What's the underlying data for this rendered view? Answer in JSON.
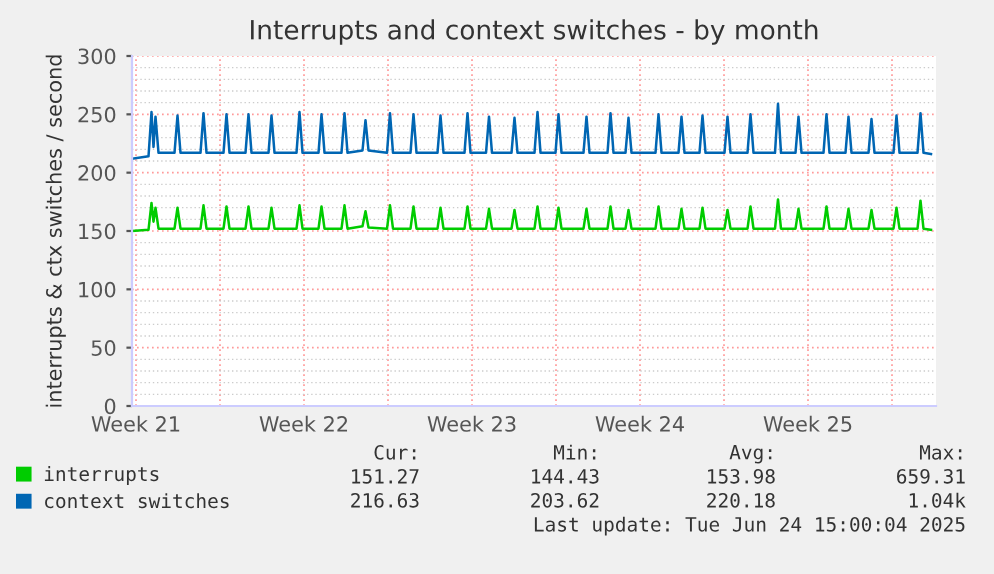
{
  "chart_data": {
    "type": "line",
    "title": "Interrupts and context switches - by month",
    "ylabel": "interrupts & ctx switches / second",
    "x": [
      "2025-05-22T08:00",
      "2025-05-23T00:30",
      "2025-05-23T03:30",
      "2025-05-23T05:30",
      "2025-05-23T07:30",
      "2025-05-23T10:30",
      "2025-05-24T02:30",
      "2025-05-24T05:30",
      "2025-05-24T08:30",
      "2025-05-25T04:30",
      "2025-05-25T07:30",
      "2025-05-25T10:30",
      "2025-05-26T03:30",
      "2025-05-26T06:30",
      "2025-05-26T09:30",
      "2025-05-27T01:30",
      "2025-05-27T04:30",
      "2025-05-27T07:30",
      "2025-05-28T00:30",
      "2025-05-28T03:30",
      "2025-05-28T06:30",
      "2025-05-29T04:30",
      "2025-05-29T07:30",
      "2025-05-29T10:30",
      "2025-05-30T02:30",
      "2025-05-30T05:30",
      "2025-05-30T08:30",
      "2025-05-31T01:30",
      "2025-05-31T04:30",
      "2025-05-31T07:30",
      "2025-05-31T22:30",
      "2025-06-01T01:30",
      "2025-06-01T04:30",
      "2025-06-01T23:00",
      "2025-06-02T02:00",
      "2025-06-02T05:00",
      "2025-06-02T22:30",
      "2025-06-03T01:30",
      "2025-06-03T04:30",
      "2025-06-04T01:30",
      "2025-06-04T04:30",
      "2025-06-04T07:30",
      "2025-06-05T04:30",
      "2025-06-05T07:30",
      "2025-06-05T10:30",
      "2025-06-06T02:00",
      "2025-06-06T05:00",
      "2025-06-06T08:00",
      "2025-06-07T03:30",
      "2025-06-07T06:30",
      "2025-06-07T09:30",
      "2025-06-08T02:30",
      "2025-06-08T05:30",
      "2025-06-08T08:30",
      "2025-06-08T23:30",
      "2025-06-09T02:30",
      "2025-06-09T05:30",
      "2025-06-10T03:30",
      "2025-06-10T06:30",
      "2025-06-10T09:30",
      "2025-06-11T03:30",
      "2025-06-11T06:30",
      "2025-06-11T09:30",
      "2025-06-11T21:30",
      "2025-06-12T00:30",
      "2025-06-12T03:30",
      "2025-06-13T03:30",
      "2025-06-13T06:30",
      "2025-06-13T09:30",
      "2025-06-14T02:30",
      "2025-06-14T05:30",
      "2025-06-14T08:30",
      "2025-06-14T23:30",
      "2025-06-15T02:30",
      "2025-06-15T05:30",
      "2025-06-16T00:30",
      "2025-06-16T03:30",
      "2025-06-16T06:30",
      "2025-06-16T23:30",
      "2025-06-17T02:30",
      "2025-06-17T05:30",
      "2025-06-18T03:00",
      "2025-06-18T06:00",
      "2025-06-18T09:00",
      "2025-06-18T23:30",
      "2025-06-19T02:30",
      "2025-06-19T05:30",
      "2025-06-20T03:30",
      "2025-06-20T06:30",
      "2025-06-20T09:30",
      "2025-06-21T01:30",
      "2025-06-21T04:30",
      "2025-06-21T07:30",
      "2025-06-22T00:30",
      "2025-06-22T03:30",
      "2025-06-22T06:30",
      "2025-06-23T01:30",
      "2025-06-23T04:30",
      "2025-06-23T07:30",
      "2025-06-24T01:30",
      "2025-06-24T04:30",
      "2025-06-24T07:30",
      "2025-06-24T15:00"
    ],
    "series": [
      {
        "name": "interrupts",
        "color": "#00cc00",
        "values": [
          150,
          151,
          174,
          158,
          170,
          152,
          152,
          170,
          152,
          152,
          172,
          152,
          152,
          171,
          152,
          152,
          171,
          152,
          152,
          170,
          152,
          152,
          172,
          152,
          152,
          171,
          152,
          152,
          172,
          152,
          154,
          167,
          153,
          152,
          172,
          152,
          152,
          171,
          152,
          152,
          170,
          152,
          152,
          171,
          152,
          152,
          169,
          152,
          152,
          168,
          152,
          152,
          171,
          152,
          152,
          170,
          152,
          152,
          169,
          152,
          152,
          171,
          152,
          152,
          168,
          152,
          152,
          171,
          152,
          152,
          169,
          152,
          152,
          170,
          152,
          152,
          168,
          152,
          152,
          171,
          152,
          152,
          177,
          152,
          152,
          169,
          152,
          152,
          171,
          152,
          152,
          169,
          152,
          152,
          168,
          152,
          152,
          170,
          152,
          152,
          176,
          152,
          151
        ]
      },
      {
        "name": "context switches",
        "color": "#0066b3",
        "values": [
          212,
          214,
          252,
          222,
          248,
          217,
          217,
          249,
          217,
          217,
          251,
          217,
          217,
          250,
          217,
          217,
          250,
          217,
          217,
          249,
          217,
          217,
          252,
          217,
          217,
          250,
          217,
          217,
          251,
          217,
          219,
          245,
          219,
          217,
          251,
          217,
          217,
          250,
          217,
          217,
          249,
          217,
          217,
          251,
          217,
          217,
          248,
          217,
          217,
          247,
          217,
          217,
          252,
          217,
          217,
          250,
          217,
          217,
          248,
          217,
          217,
          251,
          217,
          217,
          247,
          217,
          217,
          250,
          217,
          217,
          248,
          217,
          217,
          249,
          217,
          217,
          248,
          217,
          217,
          250,
          217,
          217,
          259,
          217,
          217,
          248,
          217,
          217,
          250,
          217,
          217,
          248,
          217,
          217,
          246,
          217,
          217,
          249,
          217,
          217,
          251,
          217,
          216
        ]
      }
    ],
    "xlim": [
      "2025-05-22T08:00",
      "2025-06-24T20:00"
    ],
    "xticks": [
      {
        "value": "2025-05-22T12:00",
        "label": "Week 21"
      },
      {
        "value": "2025-05-26T00:00",
        "label": null
      },
      {
        "value": "2025-05-29T12:00",
        "label": "Week 22"
      },
      {
        "value": "2025-06-02T00:00",
        "label": null
      },
      {
        "value": "2025-06-05T12:00",
        "label": "Week 23"
      },
      {
        "value": "2025-06-09T00:00",
        "label": null
      },
      {
        "value": "2025-06-12T12:00",
        "label": "Week 24"
      },
      {
        "value": "2025-06-16T00:00",
        "label": null
      },
      {
        "value": "2025-06-19T12:00",
        "label": "Week 25"
      },
      {
        "value": "2025-06-23T00:00",
        "label": null
      }
    ],
    "ylim": [
      0,
      300
    ],
    "yticks": [
      0,
      50,
      100,
      150,
      200,
      250,
      300
    ],
    "grid": true,
    "legend": "bottom",
    "marker": "none",
    "line_style": "solid",
    "annotations": [
      "Cur:",
      "Min:",
      "Avg:",
      "Max:",
      "151.27",
      "144.43",
      "153.98",
      "659.31",
      "216.63",
      "203.62",
      "220.18",
      "1.04k",
      "Last update: Tue Jun 24 15:00:04 2025"
    ]
  }
}
